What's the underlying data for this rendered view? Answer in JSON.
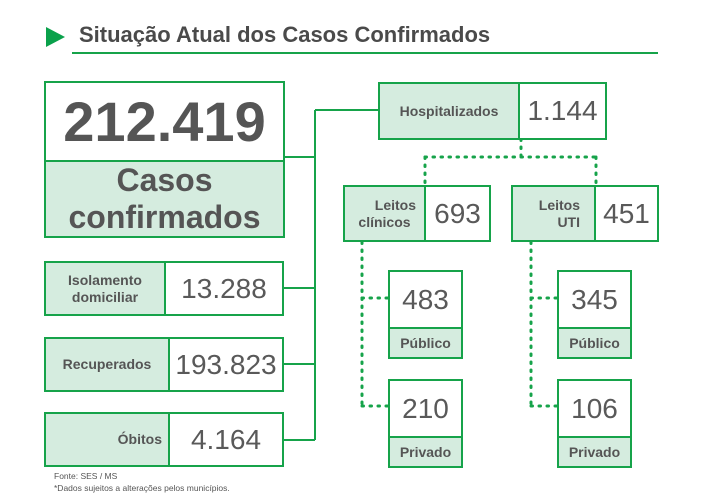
{
  "header": {
    "title": "Situação Atual dos Casos Confirmados"
  },
  "colors": {
    "accent": "#16a34a",
    "label_fill": "#d5ecdf",
    "text": "#595959"
  },
  "total": {
    "value": "212.419",
    "label_line1": "Casos",
    "label_line2": "confirmados"
  },
  "isolamento": {
    "label_line1": "Isolamento",
    "label_line2": "domiciliar",
    "value": "13.288"
  },
  "recuperados": {
    "label": "Recuperados",
    "value": "193.823"
  },
  "obitos": {
    "label": "Óbitos",
    "value": "4.164"
  },
  "hospitalizados": {
    "label": "Hospitalizados",
    "value": "1.144"
  },
  "leitos_clinicos": {
    "label_line1": "Leitos",
    "label_line2": "clínicos",
    "value": "693",
    "publico": {
      "value": "483",
      "label": "Público"
    },
    "privado": {
      "value": "210",
      "label": "Privado"
    }
  },
  "leitos_uti": {
    "label_line1": "Leitos",
    "label_line2": "UTI",
    "value": "451",
    "publico": {
      "value": "345",
      "label": "Público"
    },
    "privado": {
      "value": "106",
      "label": "Privado"
    }
  },
  "footer": {
    "source": "Fonte: SES / MS",
    "note": "*Dados sujeitos a alterações pelos municípios."
  }
}
